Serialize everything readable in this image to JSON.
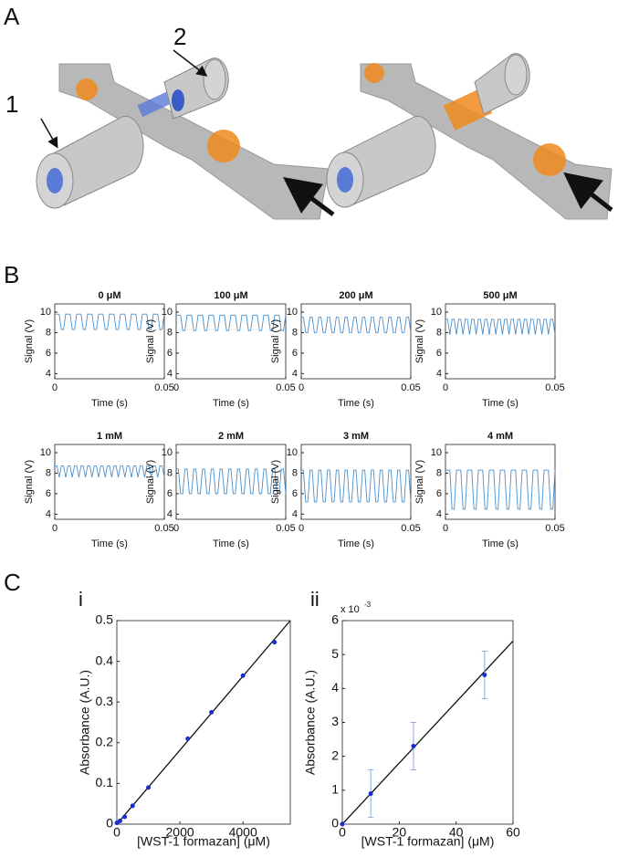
{
  "panel_labels": [
    "A",
    "B",
    "C"
  ],
  "panel_a": {
    "labels": [
      "1",
      "2"
    ]
  },
  "panel_c_labels": [
    "i",
    "ii"
  ],
  "chart_data": [
    {
      "type": "line",
      "facets": true,
      "color": "#4a8fcb",
      "xlabel": "Time (s)",
      "ylabel": "Signal (V)",
      "xlim": [
        0,
        0.05
      ],
      "xticks": [
        0,
        0.05
      ],
      "ylim": [
        3.5,
        10.8
      ],
      "yticks": [
        4,
        6,
        8,
        10
      ],
      "x": [
        0,
        0.001,
        0.002,
        0.003,
        0.004,
        0.005,
        0.006,
        0.007,
        0.008,
        0.009,
        0.01,
        0.011,
        0.012,
        0.013,
        0.014,
        0.015,
        0.016,
        0.017,
        0.018,
        0.019,
        0.02,
        0.021,
        0.022,
        0.023,
        0.024,
        0.025,
        0.026,
        0.027,
        0.028,
        0.029,
        0.03,
        0.031,
        0.032,
        0.033,
        0.034,
        0.035,
        0.036,
        0.037,
        0.038,
        0.039,
        0.04,
        0.041,
        0.042,
        0.043,
        0.044,
        0.045,
        0.046,
        0.047,
        0.048,
        0.049,
        0.05
      ],
      "series": [
        {
          "name": "0 μM",
          "values": [
            9.8,
            9.8,
            9.8,
            8.3,
            8.3,
            9.8,
            9.8,
            9.8,
            8.3,
            8.3,
            9.8,
            9.8,
            9.8,
            8.3,
            8.3,
            9.8,
            9.8,
            9.8,
            8.3,
            8.3,
            9.8,
            9.8,
            9.8,
            8.3,
            8.3,
            9.8,
            9.8,
            9.8,
            8.3,
            8.3,
            9.8,
            9.8,
            9.8,
            8.3,
            8.3,
            9.8,
            9.8,
            9.8,
            8.3,
            8.3,
            9.8,
            9.8,
            9.8,
            8.3,
            8.3,
            9.8,
            9.8,
            9.8,
            8.3,
            8.3,
            9.8
          ]
        },
        {
          "name": "100 μM",
          "values": [
            9.7,
            9.7,
            9.7,
            8.2,
            8.2,
            9.7,
            9.7,
            9.7,
            8.2,
            8.2,
            9.7,
            9.7,
            9.7,
            8.2,
            8.2,
            9.7,
            9.7,
            9.7,
            8.2,
            8.2,
            9.7,
            9.7,
            9.7,
            8.2,
            8.2,
            9.7,
            9.7,
            9.7,
            8.2,
            8.2,
            9.7,
            9.7,
            9.7,
            8.2,
            8.2,
            9.7,
            9.7,
            9.7,
            8.2,
            8.2,
            9.7,
            9.7,
            9.7,
            8.2,
            8.2,
            9.7,
            9.7,
            9.7,
            8.2,
            8.2,
            9.7
          ]
        },
        {
          "name": "200 μM",
          "values": [
            9.5,
            9.5,
            8,
            8,
            9.5,
            9.5,
            8,
            8,
            9.5,
            9.5,
            8,
            8,
            9.5,
            9.5,
            8,
            8,
            9.5,
            9.5,
            8,
            8,
            9.5,
            9.5,
            8,
            8,
            9.5,
            9.5,
            8,
            8,
            9.5,
            9.5,
            8,
            8,
            9.5,
            9.5,
            8,
            8,
            9.5,
            9.5,
            8,
            8,
            9.5,
            9.5,
            8,
            8,
            9.5,
            9.5,
            8,
            8,
            9.5,
            9.5,
            8
          ]
        },
        {
          "name": "500 μM",
          "values": [
            9.3,
            9.3,
            7.8,
            9.3,
            9.3,
            7.8,
            9.3,
            9.3,
            7.8,
            9.3,
            9.3,
            7.8,
            9.3,
            9.3,
            7.8,
            9.3,
            9.3,
            7.8,
            9.3,
            9.3,
            7.8,
            9.3,
            9.3,
            7.8,
            9.3,
            9.3,
            7.8,
            9.3,
            9.3,
            7.8,
            9.3,
            9.3,
            7.8,
            9.3,
            9.3,
            7.8,
            9.3,
            9.3,
            7.8,
            9.3,
            9.3,
            7.8,
            9.3,
            9.3,
            7.8,
            9.3,
            9.3,
            7.8,
            9.3,
            9.3,
            7.8
          ]
        },
        {
          "name": "1 mM",
          "values": [
            8.7,
            8.7,
            7.6,
            8.7,
            8.7,
            7.6,
            8.7,
            8.7,
            7.6,
            8.7,
            8.7,
            7.6,
            8.7,
            8.7,
            7.6,
            8.7,
            8.7,
            7.6,
            8.7,
            8.7,
            7.6,
            8.7,
            8.7,
            7.6,
            8.7,
            8.7,
            7.6,
            8.7,
            8.7,
            7.6,
            8.7,
            8.7,
            7.6,
            8.7,
            8.7,
            7.6,
            8.7,
            8.7,
            7.6,
            8.7,
            8.7,
            7.6,
            8.7,
            8.7,
            7.6,
            8.7,
            8.7,
            7.6,
            8.7,
            8.7,
            7.6
          ]
        },
        {
          "name": "2 mM",
          "values": [
            8.4,
            8.4,
            6,
            6,
            8.4,
            8.4,
            6,
            6,
            8.4,
            8.4,
            6,
            6,
            8.4,
            8.4,
            6,
            6,
            8.4,
            8.4,
            6,
            6,
            8.4,
            8.4,
            6,
            6,
            8.4,
            8.4,
            6,
            6,
            8.4,
            8.4,
            6,
            6,
            8.4,
            8.4,
            6,
            6,
            8.4,
            8.4,
            6,
            6,
            8.4,
            8.4,
            6,
            6,
            8.4,
            8.4,
            6,
            6,
            8.4,
            8.4,
            6
          ]
        },
        {
          "name": "3 mM",
          "values": [
            8.3,
            8.3,
            5.2,
            5.2,
            8.3,
            8.3,
            5.2,
            5.2,
            8.3,
            8.3,
            5.2,
            5.2,
            8.3,
            8.3,
            5.2,
            5.2,
            8.3,
            8.3,
            5.2,
            5.2,
            8.3,
            8.3,
            5.2,
            5.2,
            8.3,
            8.3,
            5.2,
            5.2,
            8.3,
            8.3,
            5.2,
            5.2,
            8.3,
            8.3,
            5.2,
            5.2,
            8.3,
            8.3,
            5.2,
            5.2,
            8.3,
            8.3,
            5.2,
            5.2,
            8.3,
            8.3,
            5.2,
            5.2,
            8.3,
            8.3,
            5.2
          ]
        },
        {
          "name": "4 mM",
          "values": [
            8.3,
            8.3,
            8.3,
            4.5,
            4.5,
            8.3,
            8.3,
            8.3,
            4.5,
            4.5,
            8.3,
            8.3,
            8.3,
            4.5,
            4.5,
            8.3,
            8.3,
            8.3,
            4.5,
            4.5,
            8.3,
            8.3,
            8.3,
            4.5,
            4.5,
            8.3,
            8.3,
            8.3,
            4.5,
            4.5,
            8.3,
            8.3,
            8.3,
            4.5,
            4.5,
            8.3,
            8.3,
            8.3,
            4.5,
            4.5,
            8.3,
            8.3,
            8.3,
            4.5,
            4.5,
            8.3,
            8.3,
            8.3,
            4.5,
            4.5,
            8.3
          ]
        }
      ]
    },
    {
      "type": "scatter",
      "color": "#1a2ed0",
      "line_color": "#111111",
      "xlabel": "[WST-1 formazan] (μM)",
      "ylabel": "Absorbance (A.U.)",
      "xlim": [
        0,
        5500
      ],
      "xticks": [
        0,
        2000,
        4000
      ],
      "ylim": [
        0,
        0.5
      ],
      "yticks": [
        0,
        0.1,
        0.2,
        0.3,
        0.4,
        0.5
      ],
      "x": [
        0,
        100,
        250,
        500,
        1000,
        2250,
        3000,
        4000,
        5000
      ],
      "values": [
        0.003,
        0.008,
        0.018,
        0.045,
        0.09,
        0.21,
        0.275,
        0.365,
        0.447
      ],
      "fit": {
        "x": [
          0,
          5500
        ],
        "values": [
          0,
          0.5
        ]
      }
    },
    {
      "type": "scatter",
      "color": "#1a2ed0",
      "line_color": "#111111",
      "error_color": "#8fa8e0",
      "xlabel": "[WST-1 formazan] (μM)",
      "ylabel": "Absorbance (A.U.)",
      "y_multiplier": {
        "base": "x 10",
        "exponent": "-3"
      },
      "xlim": [
        0,
        60
      ],
      "xticks": [
        0,
        20,
        40,
        60
      ],
      "ylim": [
        0,
        6
      ],
      "yticks": [
        0,
        1,
        2,
        3,
        4,
        5,
        6
      ],
      "x": [
        0,
        10,
        25,
        50
      ],
      "values": [
        0,
        0.9,
        2.3,
        4.4
      ],
      "errors": [
        0,
        0.7,
        0.7,
        0.7
      ],
      "fit": {
        "x": [
          0,
          60
        ],
        "values": [
          0,
          5.4
        ]
      }
    }
  ]
}
